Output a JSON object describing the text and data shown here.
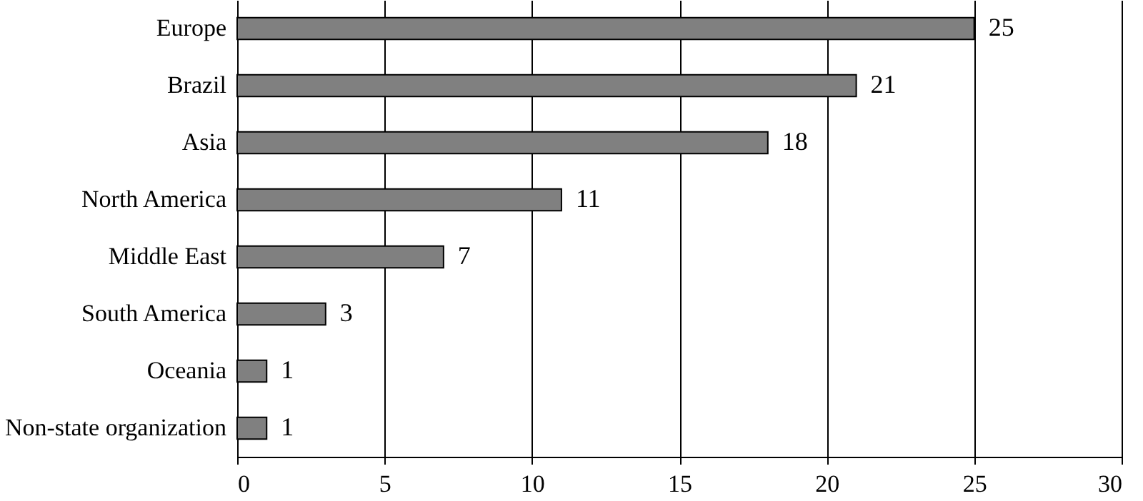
{
  "chart_data": {
    "type": "bar",
    "orientation": "horizontal",
    "categories": [
      "Europe",
      "Brazil",
      "Asia",
      "North America",
      "Middle East",
      "South America",
      "Oceania",
      "Non-state organization"
    ],
    "values": [
      25,
      21,
      18,
      11,
      7,
      3,
      1,
      1
    ],
    "color": "#808080",
    "xlim": [
      0,
      30
    ],
    "xticks": [
      0,
      5,
      10,
      15,
      20,
      25,
      30
    ],
    "grid": "x",
    "data_labels": true
  }
}
